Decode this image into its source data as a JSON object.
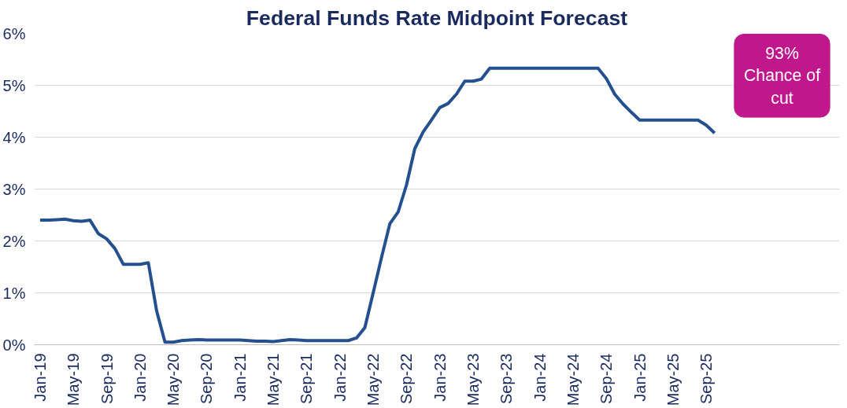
{
  "chart_data": {
    "type": "line",
    "title": "Federal Funds Rate Midpoint Forecast",
    "categories": [
      "Jan-19",
      null,
      null,
      null,
      "May-19",
      null,
      null,
      null,
      "Sep-19",
      null,
      null,
      null,
      "Jan-20",
      null,
      null,
      null,
      "May-20",
      null,
      null,
      null,
      "Sep-20",
      null,
      null,
      null,
      "Jan-21",
      null,
      null,
      null,
      "May-21",
      null,
      null,
      null,
      "Sep-21",
      null,
      null,
      null,
      "Jan-22",
      null,
      null,
      null,
      "May-22",
      null,
      null,
      null,
      "Sep-22",
      null,
      null,
      null,
      "Jan-23",
      null,
      null,
      null,
      "May-23",
      null,
      null,
      null,
      "Sep-23",
      null,
      null,
      null,
      "Jan-24",
      null,
      null,
      null,
      "May-24",
      null,
      null,
      null,
      "Sep-24",
      null,
      null,
      null,
      "Jan-25",
      null,
      null,
      null,
      "May-25",
      null,
      null,
      null,
      "Sep-25",
      null
    ],
    "series": [
      {
        "color": "#24508f",
        "values": [
          2.4,
          2.4,
          2.41,
          2.42,
          2.39,
          2.38,
          2.4,
          2.14,
          2.04,
          1.85,
          1.55,
          1.55,
          1.55,
          1.58,
          0.65,
          0.05,
          0.05,
          0.08,
          0.09,
          0.1,
          0.09,
          0.09,
          0.09,
          0.09,
          0.09,
          0.08,
          0.07,
          0.07,
          0.06,
          0.08,
          0.1,
          0.09,
          0.08,
          0.08,
          0.08,
          0.08,
          0.08,
          0.08,
          0.13,
          0.33,
          1.0,
          1.68,
          2.33,
          2.56,
          3.08,
          3.78,
          4.1,
          4.33,
          4.57,
          4.65,
          4.83,
          5.08,
          5.08,
          5.12,
          5.33,
          5.33,
          5.33,
          5.33,
          5.33,
          5.33,
          5.33,
          5.33,
          5.33,
          5.33,
          5.33,
          5.33,
          5.33,
          5.33,
          5.13,
          4.83,
          4.64,
          4.48,
          4.33,
          4.33,
          4.33,
          4.33,
          4.33,
          4.33,
          4.33,
          4.33,
          4.23,
          4.08
        ]
      }
    ],
    "ylim": [
      0,
      6
    ],
    "yticks": [
      {
        "value": 0,
        "label": "0%"
      },
      {
        "value": 1,
        "label": "1%"
      },
      {
        "value": 2,
        "label": "2%"
      },
      {
        "value": 3,
        "label": "3%"
      },
      {
        "value": 4,
        "label": "4%"
      },
      {
        "value": 5,
        "label": "5%"
      },
      {
        "value": 6,
        "label": "6%"
      }
    ],
    "grid": "y",
    "marker": "none",
    "line_style": "solid",
    "annotations": [
      "93%\nChance of\ncut"
    ]
  }
}
